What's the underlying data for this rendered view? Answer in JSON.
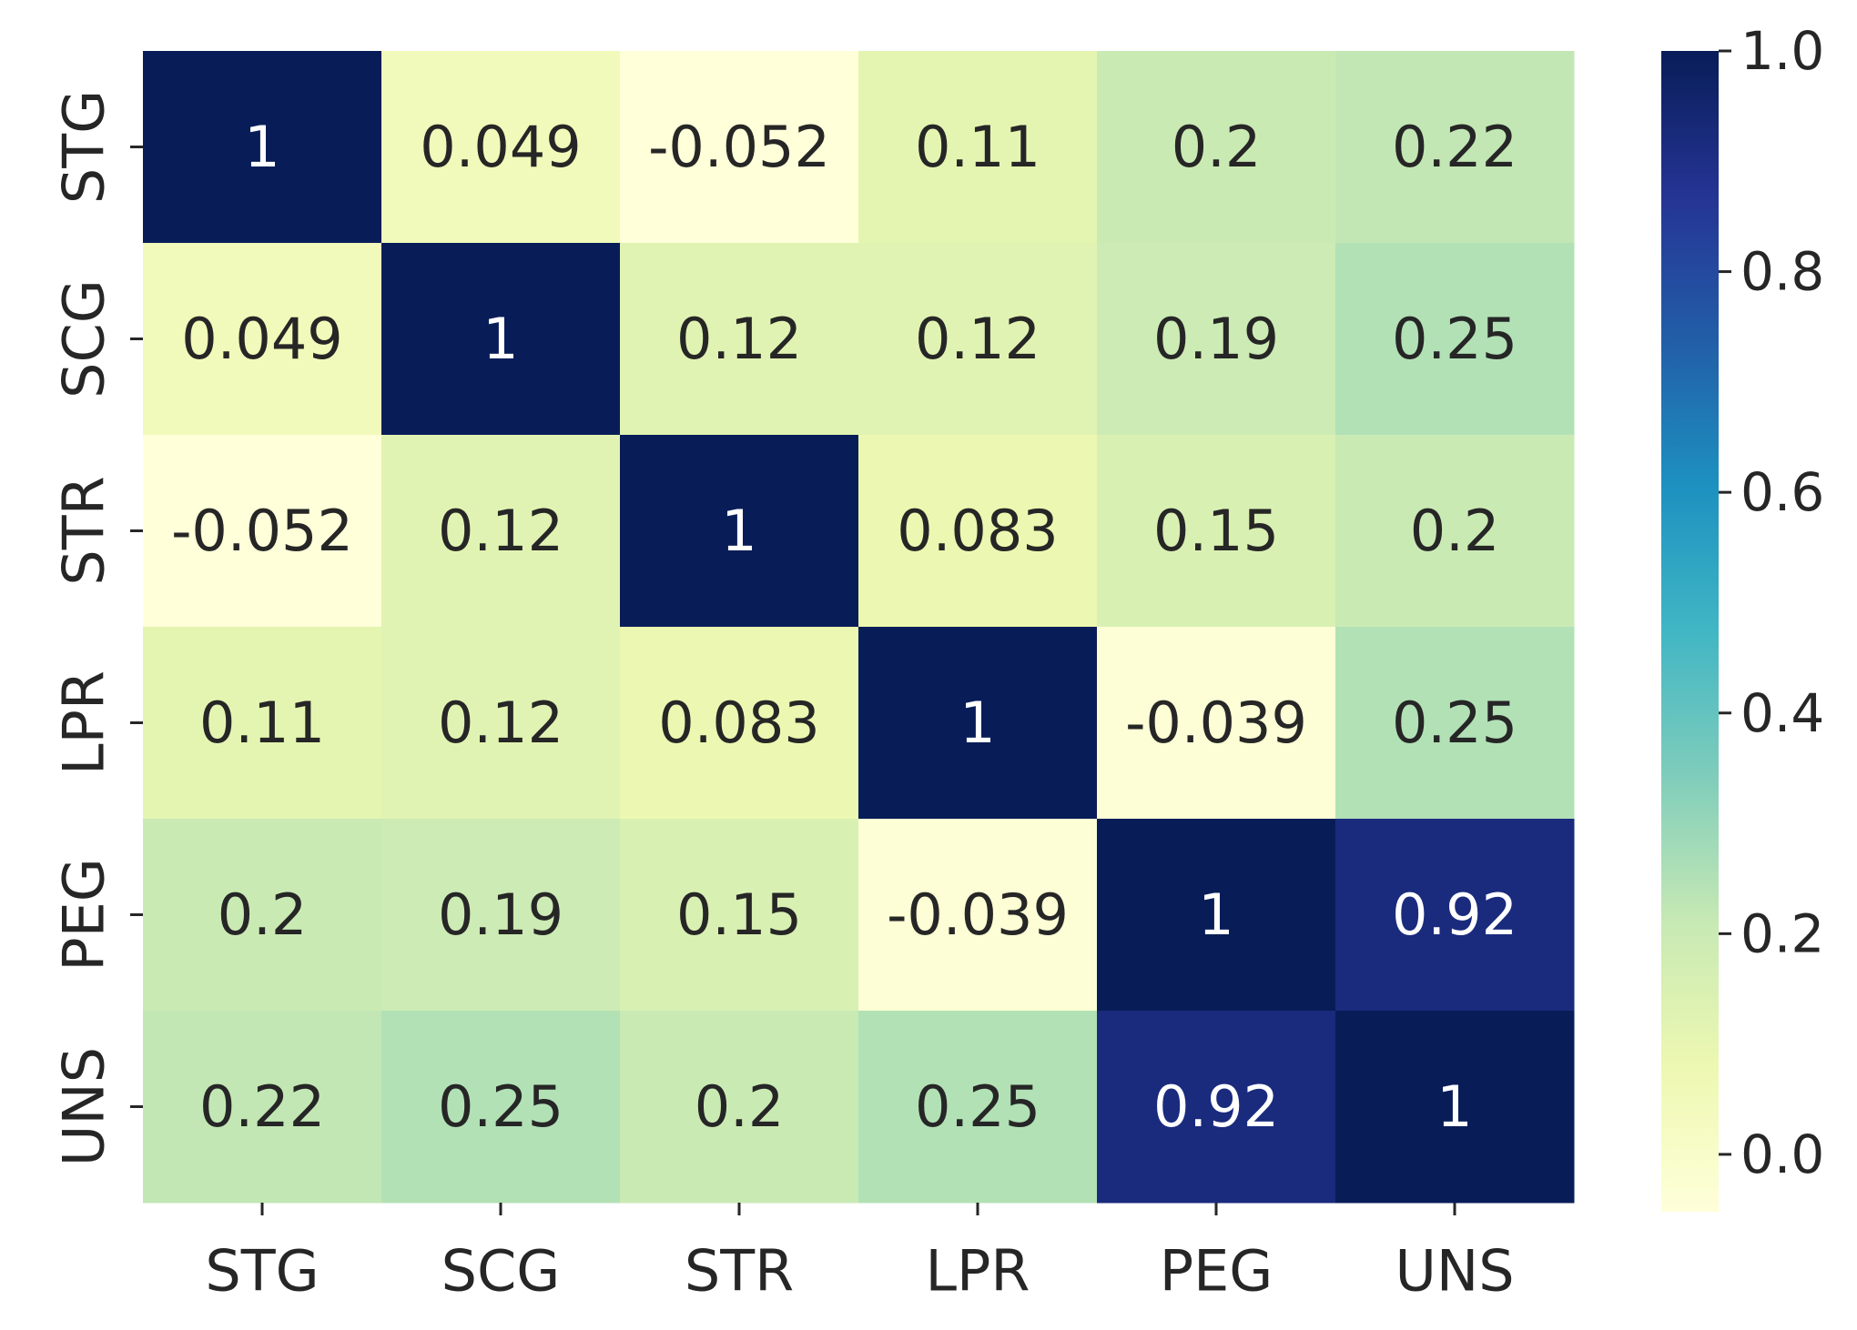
{
  "chart_data": {
    "type": "heatmap",
    "title": "",
    "xlabel": "",
    "ylabel": "",
    "x_categories": [
      "STG",
      "SCG",
      "STR",
      "LPR",
      "PEG",
      "UNS"
    ],
    "y_categories": [
      "STG",
      "SCG",
      "STR",
      "LPR",
      "PEG",
      "UNS"
    ],
    "values": [
      [
        1,
        0.049,
        -0.052,
        0.11,
        0.2,
        0.22
      ],
      [
        0.049,
        1,
        0.12,
        0.12,
        0.19,
        0.25
      ],
      [
        -0.052,
        0.12,
        1,
        0.083,
        0.15,
        0.2
      ],
      [
        0.11,
        0.12,
        0.083,
        1,
        -0.039,
        0.25
      ],
      [
        0.2,
        0.19,
        0.15,
        -0.039,
        1,
        0.92
      ],
      [
        0.22,
        0.25,
        0.2,
        0.25,
        0.92,
        1
      ]
    ],
    "annotations": [
      [
        "1",
        "0.049",
        "-0.052",
        "0.11",
        "0.2",
        "0.22"
      ],
      [
        "0.049",
        "1",
        "0.12",
        "0.12",
        "0.19",
        "0.25"
      ],
      [
        "-0.052",
        "0.12",
        "1",
        "0.083",
        "0.15",
        "0.2"
      ],
      [
        "0.11",
        "0.12",
        "0.083",
        "1",
        "-0.039",
        "0.25"
      ],
      [
        "0.2",
        "0.19",
        "0.15",
        "-0.039",
        "1",
        "0.92"
      ],
      [
        "0.22",
        "0.25",
        "0.2",
        "0.25",
        "0.92",
        "1"
      ]
    ],
    "colorbar": {
      "range": [
        -0.052,
        1
      ],
      "ticks": [
        0.0,
        0.2,
        0.4,
        0.6,
        0.8,
        1.0
      ],
      "tick_labels": [
        "0.0",
        "0.2",
        "0.4",
        "0.6",
        "0.8",
        "1.0"
      ],
      "colormap": "YlGnBu",
      "position": "right"
    },
    "colormap_stops": [
      "#ffffd9",
      "#edf8b1",
      "#c7e9b4",
      "#7fcdbb",
      "#41b6c4",
      "#1d91c0",
      "#225ea8",
      "#253494",
      "#081d58"
    ]
  }
}
